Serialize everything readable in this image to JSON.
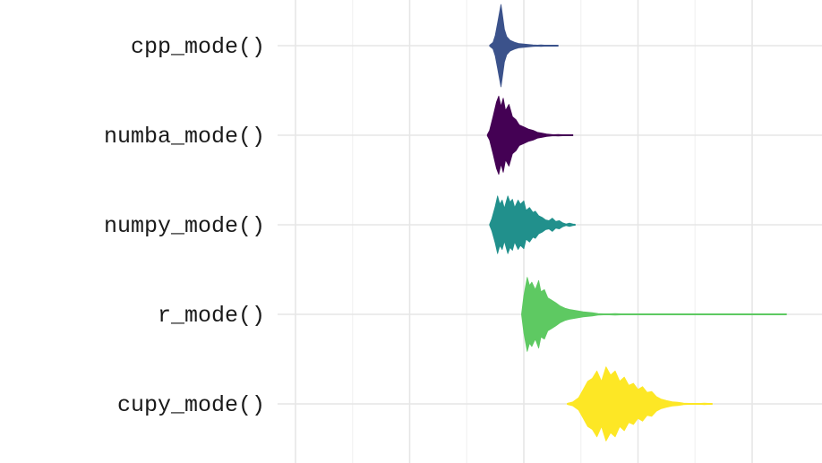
{
  "chart_data": {
    "type": "violin",
    "orientation": "horizontal",
    "x_axis_visible": false,
    "grid": true,
    "legend": "none",
    "categories": [
      "cpp_mode()",
      "numba_mode()",
      "numpy_mode()",
      "r_mode()",
      "cupy_mode()"
    ],
    "x_gridlines": [
      0,
      1,
      2,
      3,
      4
    ],
    "xlim": [
      0,
      4.5
    ],
    "series": [
      {
        "category": "cpp_mode()",
        "color": "#3b528b",
        "range": [
          1.7,
          2.3
        ],
        "density": [
          [
            1.7,
            0.0
          ],
          [
            1.73,
            0.08
          ],
          [
            1.75,
            0.25
          ],
          [
            1.77,
            0.55
          ],
          [
            1.79,
            0.85
          ],
          [
            1.8,
            1.0
          ],
          [
            1.81,
            0.8
          ],
          [
            1.83,
            0.4
          ],
          [
            1.85,
            0.22
          ],
          [
            1.88,
            0.13
          ],
          [
            1.92,
            0.08
          ],
          [
            1.96,
            0.05
          ],
          [
            2.0,
            0.04
          ],
          [
            2.04,
            0.03
          ],
          [
            2.08,
            0.02
          ],
          [
            2.12,
            0.0
          ],
          [
            2.15,
            0.02
          ],
          [
            2.18,
            0.0
          ],
          [
            2.22,
            0.01
          ],
          [
            2.26,
            0.0
          ],
          [
            2.28,
            0.01
          ],
          [
            2.3,
            0.0
          ]
        ]
      },
      {
        "category": "numba_mode()",
        "color": "#440154",
        "range": [
          1.68,
          2.43
        ],
        "density": [
          [
            1.68,
            0.0
          ],
          [
            1.7,
            0.12
          ],
          [
            1.73,
            0.45
          ],
          [
            1.76,
            0.8
          ],
          [
            1.78,
            0.95
          ],
          [
            1.8,
            0.7
          ],
          [
            1.82,
            0.9
          ],
          [
            1.84,
            0.6
          ],
          [
            1.87,
            0.75
          ],
          [
            1.9,
            0.45
          ],
          [
            1.93,
            0.38
          ],
          [
            1.96,
            0.25
          ],
          [
            2.0,
            0.2
          ],
          [
            2.04,
            0.15
          ],
          [
            2.08,
            0.12
          ],
          [
            2.12,
            0.07
          ],
          [
            2.16,
            0.05
          ],
          [
            2.2,
            0.03
          ],
          [
            2.24,
            0.02
          ],
          [
            2.26,
            0.0
          ],
          [
            2.3,
            0.02
          ],
          [
            2.34,
            0.01
          ],
          [
            2.38,
            0.0
          ],
          [
            2.4,
            0.01
          ],
          [
            2.43,
            0.0
          ]
        ]
      },
      {
        "category": "numpy_mode()",
        "color": "#21908c",
        "range": [
          1.7,
          2.45
        ],
        "density": [
          [
            1.7,
            0.0
          ],
          [
            1.72,
            0.15
          ],
          [
            1.75,
            0.45
          ],
          [
            1.77,
            0.7
          ],
          [
            1.79,
            0.5
          ],
          [
            1.81,
            0.6
          ],
          [
            1.83,
            0.4
          ],
          [
            1.86,
            0.7
          ],
          [
            1.88,
            0.55
          ],
          [
            1.9,
            0.62
          ],
          [
            1.92,
            0.42
          ],
          [
            1.95,
            0.6
          ],
          [
            1.97,
            0.5
          ],
          [
            2.0,
            0.58
          ],
          [
            2.02,
            0.35
          ],
          [
            2.05,
            0.42
          ],
          [
            2.08,
            0.3
          ],
          [
            2.1,
            0.33
          ],
          [
            2.13,
            0.22
          ],
          [
            2.16,
            0.18
          ],
          [
            2.19,
            0.12
          ],
          [
            2.22,
            0.1
          ],
          [
            2.25,
            0.16
          ],
          [
            2.28,
            0.08
          ],
          [
            2.31,
            0.1
          ],
          [
            2.34,
            0.05
          ],
          [
            2.37,
            0.02
          ],
          [
            2.4,
            0.04
          ],
          [
            2.43,
            0.02
          ],
          [
            2.45,
            0.0
          ]
        ]
      },
      {
        "category": "r_mode()",
        "color": "#5ec962",
        "range": [
          1.98,
          4.3
        ],
        "density": [
          [
            1.98,
            0.0
          ],
          [
            2.0,
            0.45
          ],
          [
            2.03,
            0.9
          ],
          [
            2.05,
            0.7
          ],
          [
            2.07,
            0.78
          ],
          [
            2.1,
            0.6
          ],
          [
            2.13,
            0.82
          ],
          [
            2.15,
            0.55
          ],
          [
            2.18,
            0.6
          ],
          [
            2.21,
            0.4
          ],
          [
            2.24,
            0.35
          ],
          [
            2.28,
            0.28
          ],
          [
            2.32,
            0.2
          ],
          [
            2.36,
            0.15
          ],
          [
            2.4,
            0.12
          ],
          [
            2.44,
            0.1
          ],
          [
            2.48,
            0.08
          ],
          [
            2.52,
            0.06
          ],
          [
            2.56,
            0.05
          ],
          [
            2.6,
            0.04
          ],
          [
            2.65,
            0.02
          ],
          [
            2.7,
            0.01
          ],
          [
            2.75,
            0.0
          ],
          [
            2.8,
            0.02
          ],
          [
            2.85,
            0.0
          ],
          [
            3.6,
            0.0
          ],
          [
            3.62,
            0.01
          ],
          [
            3.65,
            0.0
          ],
          [
            4.2,
            0.0
          ],
          [
            4.24,
            0.01
          ],
          [
            4.3,
            0.0
          ]
        ]
      },
      {
        "category": "cupy_mode()",
        "color": "#fde725",
        "range": [
          2.38,
          3.65
        ],
        "density": [
          [
            2.38,
            0.0
          ],
          [
            2.43,
            0.05
          ],
          [
            2.48,
            0.15
          ],
          [
            2.52,
            0.35
          ],
          [
            2.56,
            0.55
          ],
          [
            2.6,
            0.62
          ],
          [
            2.64,
            0.8
          ],
          [
            2.68,
            0.55
          ],
          [
            2.72,
            0.9
          ],
          [
            2.76,
            0.7
          ],
          [
            2.8,
            0.8
          ],
          [
            2.84,
            0.55
          ],
          [
            2.88,
            0.65
          ],
          [
            2.92,
            0.45
          ],
          [
            2.96,
            0.5
          ],
          [
            3.0,
            0.35
          ],
          [
            3.04,
            0.42
          ],
          [
            3.08,
            0.28
          ],
          [
            3.12,
            0.3
          ],
          [
            3.16,
            0.18
          ],
          [
            3.2,
            0.12
          ],
          [
            3.25,
            0.08
          ],
          [
            3.3,
            0.05
          ],
          [
            3.35,
            0.04
          ],
          [
            3.4,
            0.02
          ],
          [
            3.45,
            0.01
          ],
          [
            3.5,
            0.0
          ],
          [
            3.55,
            0.0
          ],
          [
            3.58,
            0.02
          ],
          [
            3.62,
            0.0
          ],
          [
            3.65,
            0.0
          ]
        ]
      }
    ]
  }
}
